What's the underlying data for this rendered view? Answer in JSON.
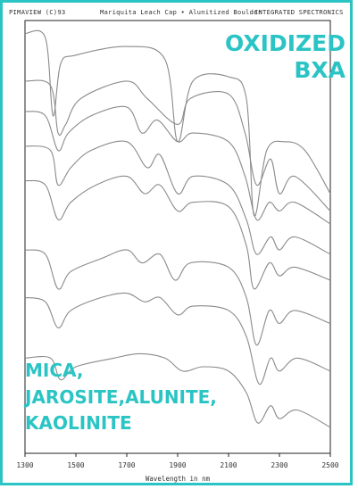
{
  "header": {
    "left": "PIMAVIEW (C)93",
    "center": "Mariquita Leach Cap • Alunitized Boulder",
    "right": "INTEGRATED SPECTRONICS"
  },
  "annotations": {
    "top_right": [
      "OXIDIZED",
      "BXA"
    ],
    "bottom_left": [
      "MICA,",
      "JAROSITE,ALUNITE,",
      "KAOLINITE"
    ]
  },
  "colors": {
    "accent": "#2bc4c4",
    "line": "#8a8a8a",
    "axis": "#222222"
  },
  "chart_data": {
    "type": "line",
    "title": "",
    "xlabel": "Wavelength in nm",
    "ylabel": "",
    "xlim": [
      1300,
      2500
    ],
    "xticks": [
      1300,
      1500,
      1700,
      1900,
      2100,
      2300,
      2500
    ],
    "grid": false,
    "series": [
      {
        "label": "",
        "points": [
          [
            1300,
            0.97
          ],
          [
            1380,
            0.96
          ],
          [
            1410,
            0.78
          ],
          [
            1440,
            0.9
          ],
          [
            1500,
            0.92
          ],
          [
            1700,
            0.94
          ],
          [
            1850,
            0.91
          ],
          [
            1900,
            0.72
          ],
          [
            1960,
            0.86
          ],
          [
            2100,
            0.87
          ],
          [
            2170,
            0.82
          ],
          [
            2200,
            0.55
          ],
          [
            2250,
            0.7
          ],
          [
            2320,
            0.72
          ],
          [
            2400,
            0.7
          ],
          [
            2500,
            0.6
          ]
        ]
      },
      {
        "label": "",
        "points": [
          [
            1300,
            0.86
          ],
          [
            1400,
            0.85
          ],
          [
            1430,
            0.74
          ],
          [
            1460,
            0.76
          ],
          [
            1520,
            0.82
          ],
          [
            1700,
            0.86
          ],
          [
            1780,
            0.82
          ],
          [
            1900,
            0.76
          ],
          [
            1950,
            0.82
          ],
          [
            2100,
            0.83
          ],
          [
            2165,
            0.74
          ],
          [
            2210,
            0.62
          ],
          [
            2265,
            0.68
          ],
          [
            2300,
            0.6
          ],
          [
            2360,
            0.64
          ],
          [
            2500,
            0.56
          ]
        ]
      },
      {
        "label": "",
        "points": [
          [
            1300,
            0.79
          ],
          [
            1380,
            0.78
          ],
          [
            1430,
            0.7
          ],
          [
            1470,
            0.74
          ],
          [
            1560,
            0.78
          ],
          [
            1700,
            0.8
          ],
          [
            1760,
            0.74
          ],
          [
            1820,
            0.77
          ],
          [
            1900,
            0.72
          ],
          [
            1960,
            0.74
          ],
          [
            2100,
            0.72
          ],
          [
            2165,
            0.64
          ],
          [
            2210,
            0.54
          ],
          [
            2260,
            0.58
          ],
          [
            2300,
            0.56
          ],
          [
            2360,
            0.58
          ],
          [
            2500,
            0.53
          ]
        ]
      },
      {
        "label": "",
        "points": [
          [
            1300,
            0.71
          ],
          [
            1400,
            0.7
          ],
          [
            1430,
            0.62
          ],
          [
            1480,
            0.66
          ],
          [
            1560,
            0.7
          ],
          [
            1700,
            0.72
          ],
          [
            1780,
            0.66
          ],
          [
            1830,
            0.69
          ],
          [
            1900,
            0.6
          ],
          [
            1960,
            0.64
          ],
          [
            2100,
            0.62
          ],
          [
            2170,
            0.54
          ],
          [
            2210,
            0.46
          ],
          [
            2265,
            0.5
          ],
          [
            2300,
            0.47
          ],
          [
            2360,
            0.5
          ],
          [
            2500,
            0.46
          ]
        ]
      },
      {
        "label": "",
        "points": [
          [
            1300,
            0.63
          ],
          [
            1380,
            0.62
          ],
          [
            1430,
            0.54
          ],
          [
            1480,
            0.58
          ],
          [
            1580,
            0.62
          ],
          [
            1700,
            0.64
          ],
          [
            1770,
            0.6
          ],
          [
            1830,
            0.62
          ],
          [
            1900,
            0.56
          ],
          [
            1960,
            0.58
          ],
          [
            2100,
            0.57
          ],
          [
            2170,
            0.48
          ],
          [
            2200,
            0.38
          ],
          [
            2260,
            0.44
          ],
          [
            2300,
            0.41
          ],
          [
            2360,
            0.43
          ],
          [
            2500,
            0.4
          ]
        ]
      },
      {
        "label": "",
        "points": [
          [
            1300,
            0.47
          ],
          [
            1380,
            0.46
          ],
          [
            1430,
            0.38
          ],
          [
            1480,
            0.42
          ],
          [
            1600,
            0.45
          ],
          [
            1700,
            0.47
          ],
          [
            1760,
            0.44
          ],
          [
            1830,
            0.46
          ],
          [
            1890,
            0.4
          ],
          [
            1950,
            0.44
          ],
          [
            2100,
            0.43
          ],
          [
            2170,
            0.36
          ],
          [
            2210,
            0.25
          ],
          [
            2260,
            0.33
          ],
          [
            2300,
            0.3
          ],
          [
            2360,
            0.33
          ],
          [
            2500,
            0.3
          ]
        ]
      },
      {
        "label": "",
        "points": [
          [
            1300,
            0.36
          ],
          [
            1380,
            0.35
          ],
          [
            1430,
            0.29
          ],
          [
            1480,
            0.33
          ],
          [
            1600,
            0.36
          ],
          [
            1700,
            0.37
          ],
          [
            1770,
            0.35
          ],
          [
            1830,
            0.36
          ],
          [
            1900,
            0.32
          ],
          [
            1960,
            0.34
          ],
          [
            2100,
            0.33
          ],
          [
            2170,
            0.27
          ],
          [
            2220,
            0.16
          ],
          [
            2265,
            0.22
          ],
          [
            2300,
            0.19
          ],
          [
            2370,
            0.22
          ],
          [
            2500,
            0.19
          ]
        ]
      },
      {
        "label": "",
        "points": [
          [
            1300,
            0.22
          ],
          [
            1400,
            0.22
          ],
          [
            1440,
            0.17
          ],
          [
            1500,
            0.2
          ],
          [
            1650,
            0.22
          ],
          [
            1750,
            0.23
          ],
          [
            1850,
            0.22
          ],
          [
            1920,
            0.19
          ],
          [
            2000,
            0.2
          ],
          [
            2100,
            0.19
          ],
          [
            2170,
            0.14
          ],
          [
            2215,
            0.07
          ],
          [
            2265,
            0.11
          ],
          [
            2300,
            0.08
          ],
          [
            2370,
            0.1
          ],
          [
            2500,
            0.06
          ]
        ]
      }
    ]
  }
}
